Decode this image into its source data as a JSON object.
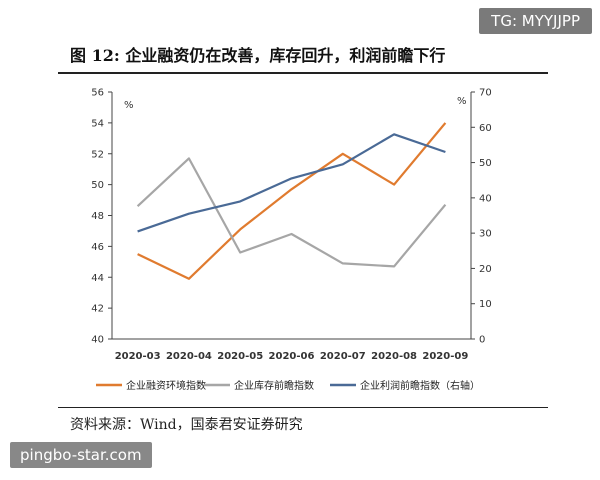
{
  "watermark_top": "TG: MYYJJPP",
  "watermark_bottom": "pingbo-star.com",
  "figure_title": "图 12: 企业融资仍在改善，库存回升，利润前瞻下行",
  "source": "资料来源：Wind，国泰君安证券研究",
  "chart_data": {
    "type": "line",
    "categories": [
      "2020-03",
      "2020-04",
      "2020-05",
      "2020-06",
      "2020-07",
      "2020-08",
      "2020-09"
    ],
    "left_axis": {
      "unit": "%",
      "ylim": [
        40,
        56
      ],
      "ticks": [
        40,
        42,
        44,
        46,
        48,
        50,
        52,
        54,
        56
      ]
    },
    "right_axis": {
      "unit": "%",
      "ylim": [
        0,
        70
      ],
      "ticks": [
        0,
        10,
        20,
        30,
        40,
        50,
        60,
        70
      ]
    },
    "grid": false,
    "legend_position": "bottom",
    "series": [
      {
        "name": "企业融资环境指数",
        "axis": "left",
        "color": "#E07B2F",
        "values": [
          45.5,
          43.9,
          47.1,
          49.7,
          52.0,
          50.0,
          54.0
        ]
      },
      {
        "name": "企业库存前瞻指数",
        "axis": "left",
        "color": "#A6A6A6",
        "values": [
          48.6,
          51.7,
          45.6,
          46.8,
          44.9,
          44.7,
          48.7
        ]
      },
      {
        "name": "企业利润前瞻指数（右轴）",
        "axis": "right",
        "color": "#4A6A96",
        "values": [
          30.5,
          35.5,
          39.0,
          45.5,
          49.5,
          58.0,
          53.0
        ]
      }
    ]
  }
}
